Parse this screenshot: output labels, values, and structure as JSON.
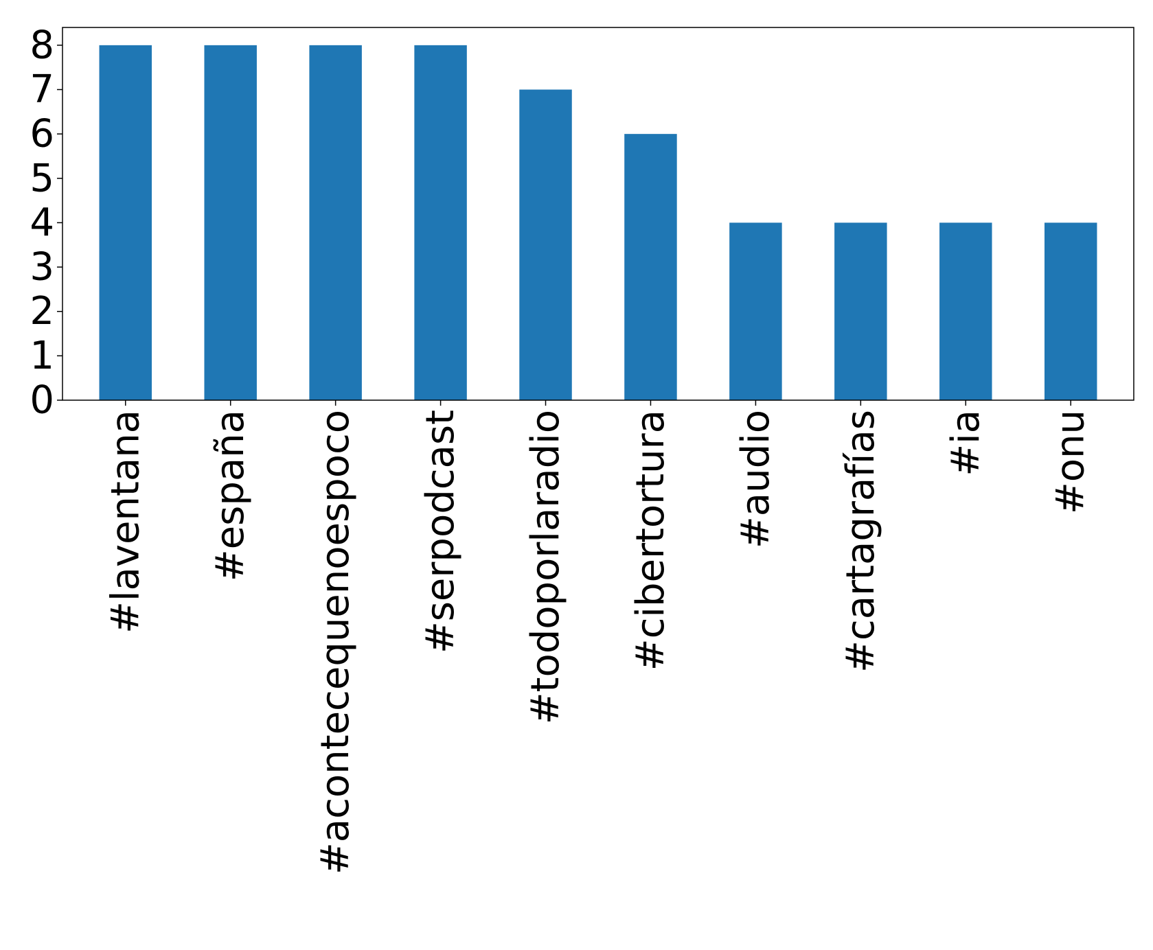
{
  "chart_data": {
    "type": "bar",
    "title": "",
    "xlabel": "",
    "ylabel": "",
    "categories": [
      "#laventana",
      "#españa",
      "#acontecequenoespoco",
      "#serpodcast",
      "#todoporlaradio",
      "#cibertortura",
      "#audio",
      "#cartagrafías",
      "#ia",
      "#onu"
    ],
    "values": [
      8,
      8,
      8,
      8,
      7,
      6,
      4,
      4,
      4,
      4
    ],
    "yticks": [
      "0",
      "1",
      "2",
      "3",
      "4",
      "5",
      "6",
      "7",
      "8"
    ],
    "ylim": [
      0,
      8.4
    ],
    "grid": false,
    "legend": "none",
    "bar_color": "#1f77b4"
  }
}
